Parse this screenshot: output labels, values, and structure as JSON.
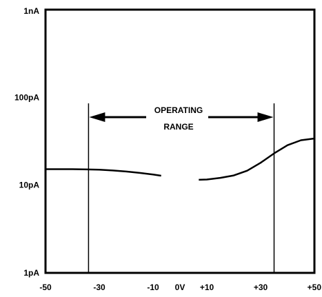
{
  "chart_data": {
    "type": "line",
    "title": "",
    "xlabel": "",
    "ylabel": "",
    "x_scale": "linear",
    "y_scale": "log",
    "xlim": [
      -50,
      50
    ],
    "ylim": [
      1,
      1000
    ],
    "y_unit": "pA",
    "grid": false,
    "x_ticks": [
      {
        "value": -50,
        "label": "-50"
      },
      {
        "value": -30,
        "label": "-30"
      },
      {
        "value": -10,
        "label": "-10"
      },
      {
        "value": 0,
        "label": "0V"
      },
      {
        "value": 10,
        "label": "+10"
      },
      {
        "value": 30,
        "label": "+30"
      },
      {
        "value": 50,
        "label": "+50"
      }
    ],
    "y_ticks": [
      {
        "value": 1,
        "label": "1pA"
      },
      {
        "value": 10,
        "label": "10pA"
      },
      {
        "value": 100,
        "label": "100pA"
      },
      {
        "value": 1000,
        "label": "1nA"
      }
    ],
    "series": [
      {
        "segments": [
          {
            "x": [
              -50,
              -40,
              -30,
              -25,
              -20,
              -15,
              -10,
              -7
            ],
            "y": [
              15.2,
              15.2,
              15.0,
              14.7,
              14.3,
              13.8,
              13.2,
              12.8
            ]
          },
          {
            "x": [
              7,
              10,
              15,
              20,
              25,
              30,
              35,
              40,
              45,
              50
            ],
            "y": [
              11.5,
              11.6,
              12.1,
              12.9,
              14.6,
              18.0,
              23.0,
              28.5,
              32.5,
              34.0
            ]
          }
        ]
      }
    ],
    "annotations": {
      "operating_range": {
        "label_lines": [
          "OPERATING",
          "RANGE"
        ],
        "x_start": -34,
        "x_end": 35
      }
    }
  }
}
